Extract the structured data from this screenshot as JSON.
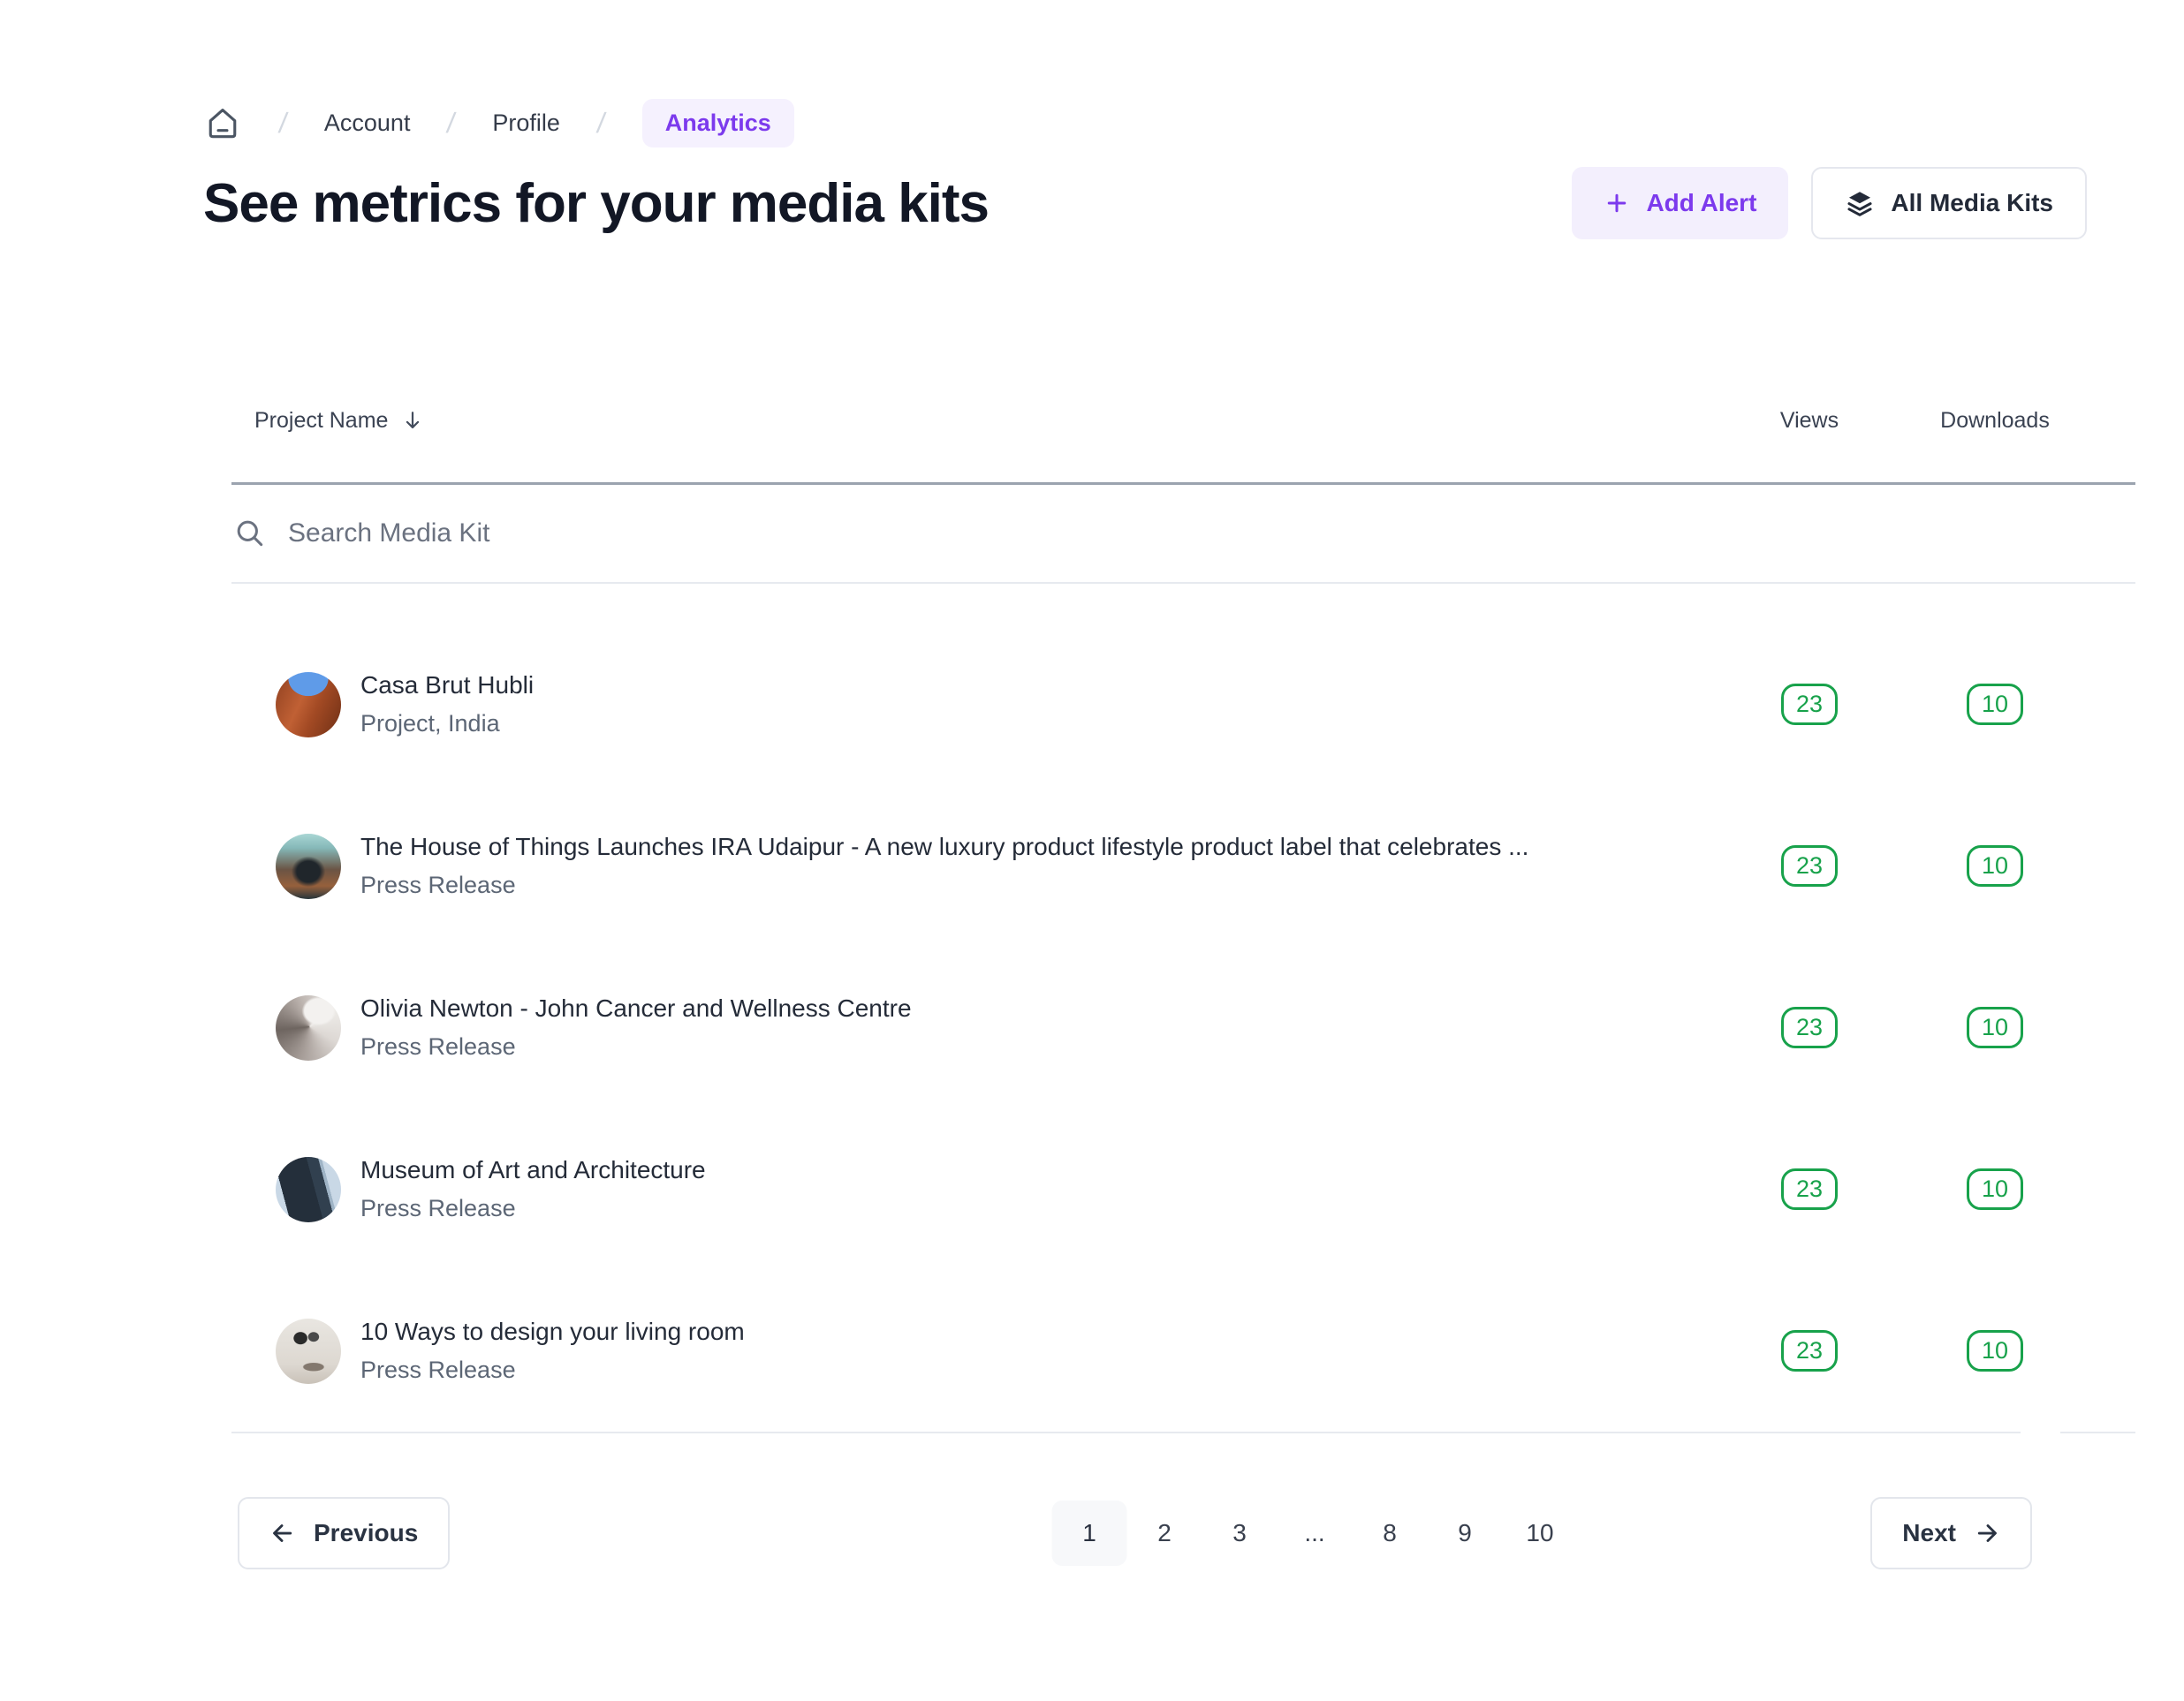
{
  "breadcrumb": {
    "separator": "/",
    "home_icon": "home-icon",
    "items": [
      {
        "label": "Account",
        "active": false
      },
      {
        "label": "Profile",
        "active": false
      },
      {
        "label": "Analytics",
        "active": true
      }
    ]
  },
  "header": {
    "title": "See metrics for your media kits",
    "add_alert": {
      "label": "Add Alert",
      "icon": "plus-icon"
    },
    "all_media_kits": {
      "label": "All Media Kits",
      "icon": "layers-icon"
    }
  },
  "table": {
    "columns": {
      "name": "Project Name",
      "views": "Views",
      "downloads": "Downloads"
    },
    "sort_icon": "arrow-down-icon",
    "search": {
      "placeholder": "Search Media Kit",
      "value": "",
      "icon": "search-icon"
    },
    "rows": [
      {
        "title": "Casa Brut Hubli",
        "subtitle": "Project, India",
        "views": "23",
        "downloads": "10",
        "avatar": "casa-brut-hubli-thumbnail"
      },
      {
        "title": "The House of Things Launches IRA Udaipur - A new luxury product lifestyle product label that celebrates ...",
        "subtitle": "Press Release",
        "views": "23",
        "downloads": "10",
        "avatar": "staircase-interior-thumbnail"
      },
      {
        "title": "Olivia Newton - John Cancer and Wellness Centre",
        "subtitle": "Press Release",
        "views": "23",
        "downloads": "10",
        "avatar": "spiral-structure-thumbnail"
      },
      {
        "title": "Museum of Art and Architecture",
        "subtitle": "Press Release",
        "views": "23",
        "downloads": "10",
        "avatar": "modern-building-thumbnail"
      },
      {
        "title": "10 Ways to design your living room",
        "subtitle": "Press Release",
        "views": "23",
        "downloads": "10",
        "avatar": "living-room-thumbnail"
      }
    ]
  },
  "pagination": {
    "previous_label": "Previous",
    "next_label": "Next",
    "previous_icon": "arrow-left-icon",
    "next_icon": "arrow-right-icon",
    "pages": [
      {
        "label": "1",
        "active": true
      },
      {
        "label": "2",
        "active": false
      },
      {
        "label": "3",
        "active": false
      },
      {
        "label": "...",
        "active": false
      },
      {
        "label": "8",
        "active": false
      },
      {
        "label": "9",
        "active": false
      },
      {
        "label": "10",
        "active": false
      }
    ]
  },
  "colors": {
    "accent_purple": "#7C3AED",
    "accent_purple_bg": "#F3EFFD",
    "badge_green": "#18A24B",
    "title_text": "#121725",
    "muted_text": "#5C6675",
    "divider_dark": "#9BA3AF",
    "divider_light": "#E7EAEF"
  }
}
